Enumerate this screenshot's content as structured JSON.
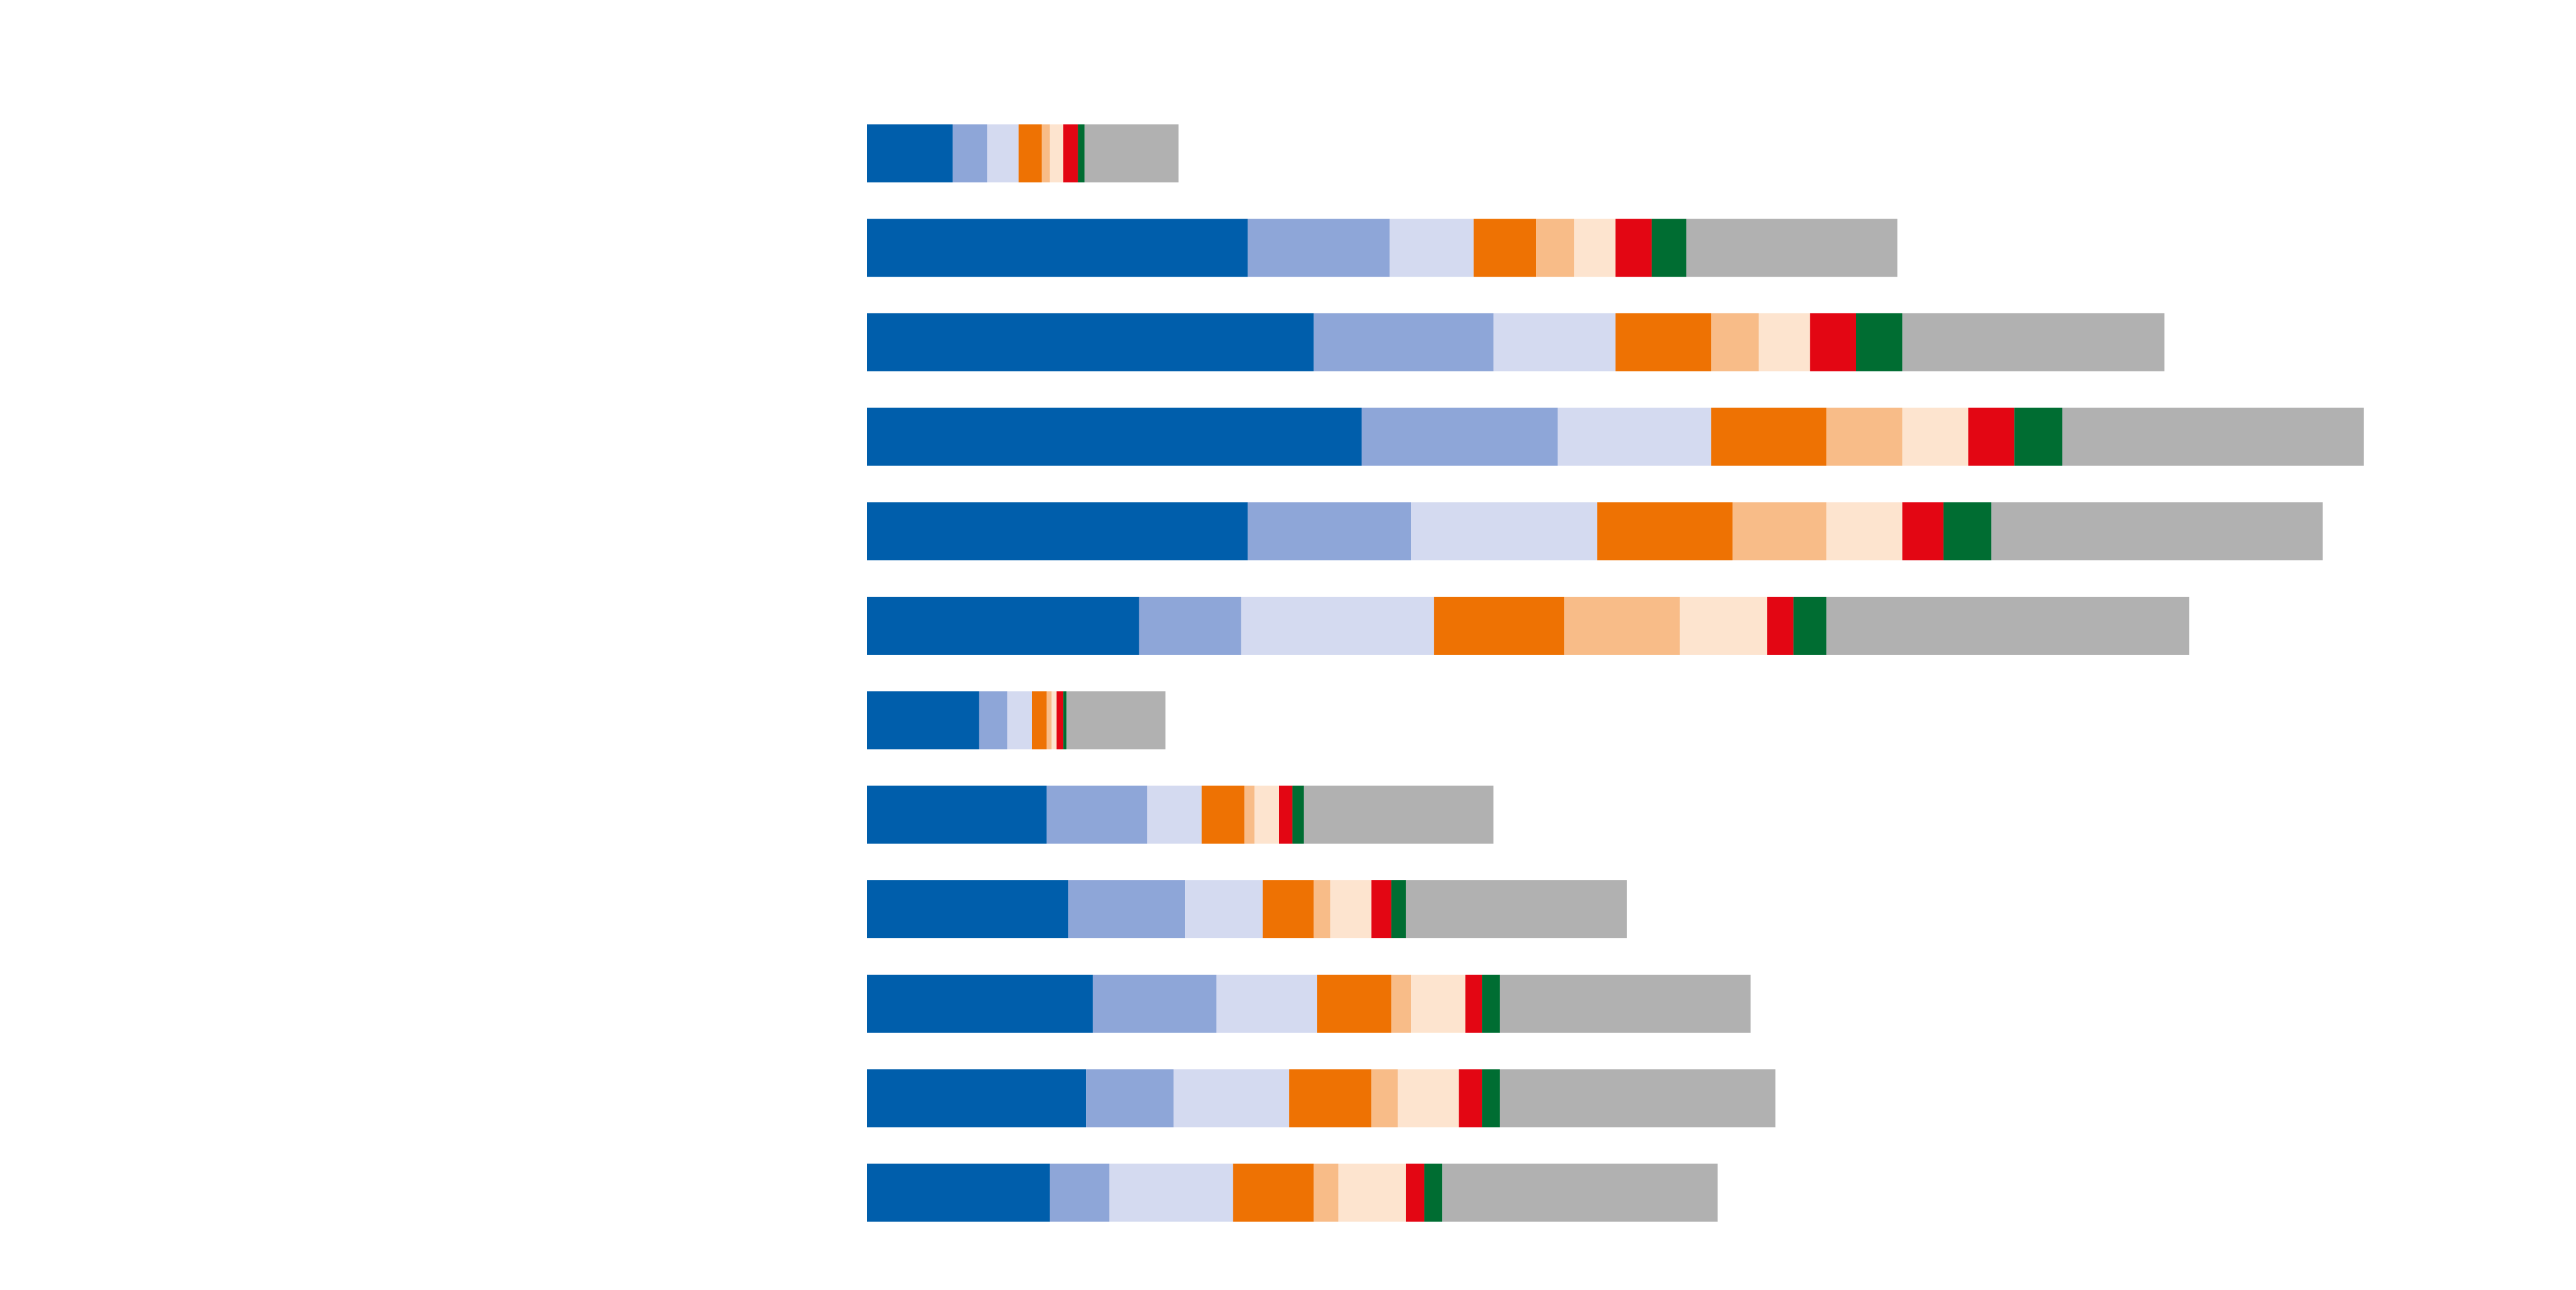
{
  "chart_data": {
    "type": "bar",
    "orientation": "horizontal",
    "stacked": true,
    "categories": [
      null,
      null,
      null,
      null,
      null,
      null,
      null,
      null,
      null,
      null,
      null,
      null
    ],
    "xlim": [
      0,
      1000
    ],
    "grid": false,
    "legend": false,
    "series": [
      {
        "color": "#005eab",
        "values": [
          52,
          231,
          271,
          300,
          231,
          165,
          68,
          109,
          122,
          137,
          133,
          111
        ]
      },
      {
        "color": "#8ea6d8",
        "values": [
          21,
          86,
          109,
          119,
          99,
          62,
          17,
          61,
          71,
          75,
          53,
          36
        ]
      },
      {
        "color": "#d4daf0",
        "values": [
          19,
          51,
          74,
          93,
          113,
          117,
          15,
          33,
          47,
          61,
          70,
          75
        ]
      },
      {
        "color": "#ee7203",
        "values": [
          14,
          38,
          58,
          70,
          82,
          79,
          9,
          26,
          31,
          45,
          50,
          49
        ]
      },
      {
        "color": "#f8bc88",
        "values": [
          5,
          23,
          29,
          46,
          57,
          70,
          3,
          6,
          10,
          12,
          16,
          15
        ]
      },
      {
        "color": "#fde4cf",
        "values": [
          8,
          25,
          31,
          40,
          46,
          53,
          3,
          15,
          25,
          33,
          37,
          41
        ]
      },
      {
        "color": "#e30613",
        "values": [
          9,
          22,
          28,
          28,
          25,
          16,
          4,
          8,
          12,
          10,
          14,
          11
        ]
      },
      {
        "color": "#006d32",
        "values": [
          4,
          21,
          28,
          29,
          29,
          20,
          2,
          7,
          9,
          11,
          11,
          11
        ]
      },
      {
        "color": "#b1b1b1",
        "values": [
          57,
          128,
          159,
          183,
          201,
          220,
          60,
          115,
          134,
          152,
          167,
          167
        ]
      }
    ]
  }
}
